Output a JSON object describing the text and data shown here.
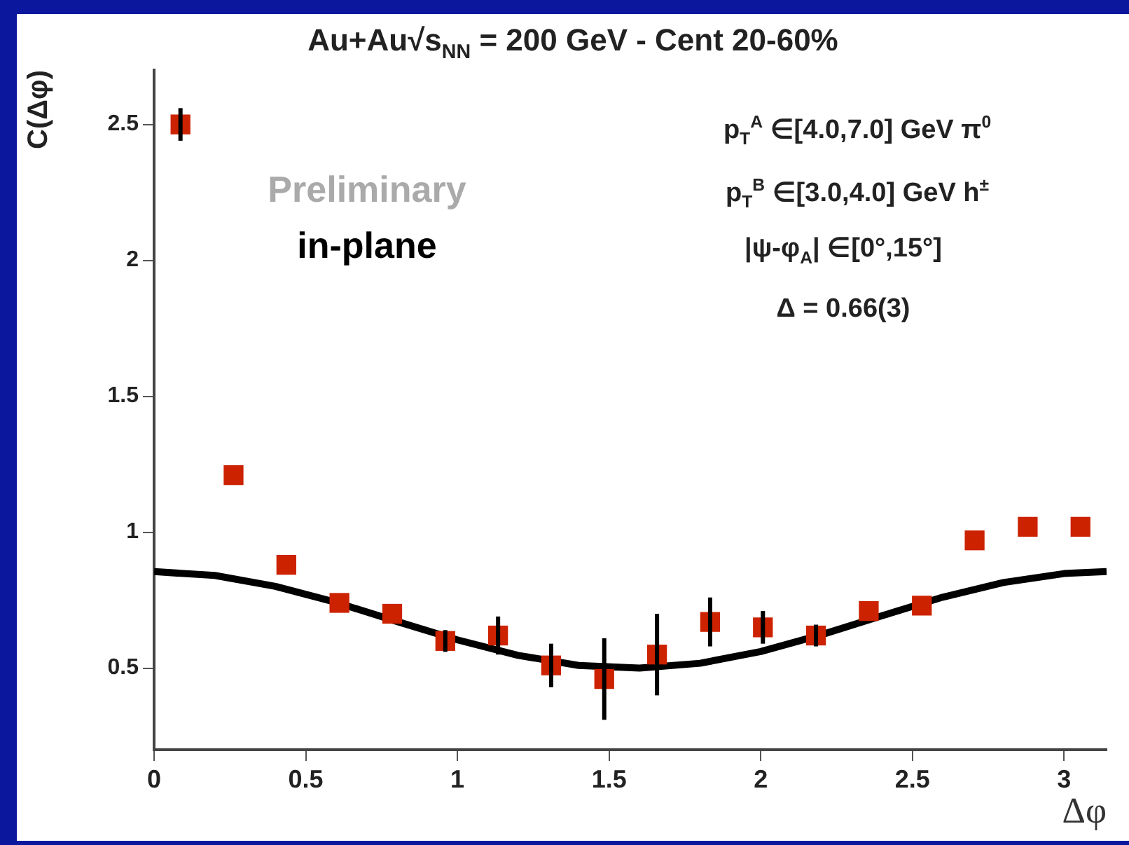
{
  "chart_data": {
    "type": "scatter",
    "title": "Au+Au√s$_{NN}$ = 200 GeV - Cent 20-60%",
    "xlabel": "Δφ",
    "ylabel": "C(Δφ)",
    "annotations": [
      "Preliminary",
      "in-plane",
      "p$_{T}$$^{A}$ ∈[4.0,7.0] GeV π$^{0}$",
      "p$_{T}$$^{B}$ ∈[3.0,4.0] GeV h$^{±}$",
      "|ψ-φ$_{A}$| ∈[0°,15°]",
      "Δ = 0.66(3)"
    ],
    "xlim": [
      0,
      3.14
    ],
    "ylim": [
      0.2,
      2.7
    ],
    "xticks": [
      0,
      0.5,
      1,
      1.5,
      2,
      2.5,
      3
    ],
    "yticks": [
      0.5,
      1,
      1.5,
      2,
      2.5
    ],
    "grid": false,
    "legend": false,
    "series": [
      {
        "type": "scatter",
        "color": "#cc2200",
        "marker": "square",
        "x": [
          0.087,
          0.262,
          0.436,
          0.611,
          0.785,
          0.96,
          1.134,
          1.309,
          1.484,
          1.658,
          1.833,
          2.007,
          2.182,
          2.356,
          2.531,
          2.705,
          2.88,
          3.054
        ],
        "values": [
          2.5,
          1.21,
          0.88,
          0.74,
          0.7,
          0.6,
          0.62,
          0.51,
          0.46,
          0.55,
          0.67,
          0.65,
          0.62,
          0.71,
          0.73,
          0.97,
          1.02,
          1.02
        ],
        "errors": [
          0.06,
          null,
          null,
          null,
          null,
          0.04,
          0.07,
          0.08,
          0.15,
          0.15,
          0.09,
          0.06,
          0.04,
          null,
          null,
          null,
          null,
          null
        ]
      },
      {
        "type": "line",
        "color": "#000000",
        "marker": "none",
        "x": [
          0,
          0.2,
          0.4,
          0.6,
          0.8,
          1.0,
          1.2,
          1.4,
          1.6,
          1.8,
          2.0,
          2.2,
          2.4,
          2.6,
          2.8,
          3.0,
          3.14
        ],
        "values": [
          0.855,
          0.841,
          0.801,
          0.742,
          0.672,
          0.604,
          0.547,
          0.51,
          0.5,
          0.518,
          0.561,
          0.623,
          0.693,
          0.761,
          0.815,
          0.848,
          0.855
        ]
      }
    ]
  }
}
